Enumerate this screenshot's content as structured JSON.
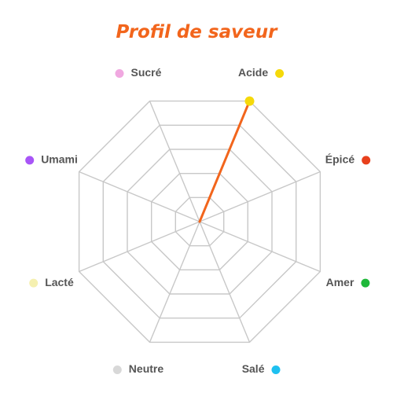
{
  "chart_data": {
    "type": "radar",
    "title": "Profil de saveur",
    "categories": [
      "Acide",
      "Épicé",
      "Amer",
      "Salé",
      "Neutre",
      "Lacté",
      "Umami",
      "Sucré"
    ],
    "category_colors": [
      "#f5d90a",
      "#e8401c",
      "#1fb83a",
      "#1ec0f0",
      "#d8d8d8",
      "#f5f0b0",
      "#a855f7",
      "#f0a8e0"
    ],
    "series": [
      {
        "color": "#f2651c",
        "values": [
          1,
          0,
          0,
          0,
          0,
          0,
          0,
          0
        ]
      }
    ],
    "range": [
      0,
      1
    ],
    "grid_levels": 5,
    "grid": true
  },
  "colors": {
    "title": "#f2651c",
    "grid": "#c8c8c8",
    "label": "#555555",
    "point": "#f5d90a"
  }
}
